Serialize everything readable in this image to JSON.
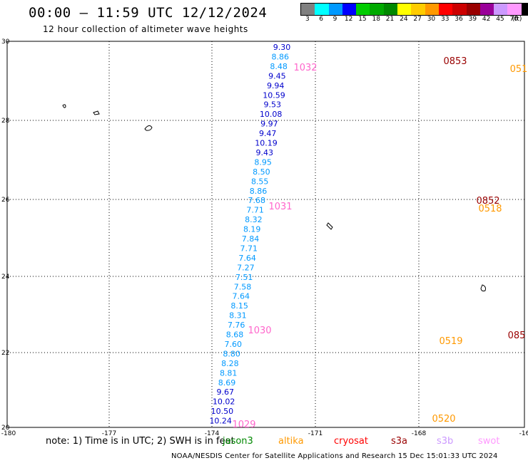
{
  "header": {
    "title": "00:00 – 11:59 UTC 12/12/2024",
    "subtitle": "12 hour collection of altimeter wave heights"
  },
  "colorbar": {
    "colors": [
      "#808080",
      "#00ffff",
      "#0099ff",
      "#0000ff",
      "#00cc00",
      "#00aa00",
      "#008800",
      "#ffff00",
      "#ffcc00",
      "#ff9900",
      "#ff0000",
      "#cc0000",
      "#990000",
      "#990099",
      "#cc99ff",
      "#ff99ff",
      "#000000"
    ],
    "labels": [
      "3",
      "6",
      "9",
      "12",
      "15",
      "18",
      "21",
      "24",
      "27",
      "30",
      "33",
      "36",
      "39",
      "42",
      "45",
      "70",
      "(ft)"
    ]
  },
  "map": {
    "lon_labels": [
      "-180",
      "-177",
      "-174",
      "-171",
      "-168",
      "-16"
    ],
    "lat_labels": [
      "30",
      "28",
      "26",
      "24",
      "22",
      "20"
    ]
  },
  "tracks": [
    {
      "lon": -173.8,
      "values": [
        "9.30",
        "8.86",
        "8.48",
        "9.45",
        "9.94",
        "10.59",
        "9.53",
        "10.08",
        "9.97",
        "9.47",
        "10.19",
        "9.43",
        "8.95",
        "8.50",
        "8.55",
        "8.86",
        "7.68",
        "7.71",
        "8.32",
        "8.19",
        "7.84",
        "7.71",
        "7.64",
        "7.27",
        "7.51",
        "7.58",
        "7.64",
        "8.15",
        "8.31",
        "7.76",
        "8.68",
        "7.60",
        "8.80",
        "8.28",
        "8.81",
        "8.69",
        "9.67",
        "10.02",
        "10.50",
        "10.24"
      ]
    }
  ],
  "pass_labels": [
    {
      "text": "1032",
      "color": "#ff66cc"
    },
    {
      "text": "1031",
      "color": "#ff66cc"
    },
    {
      "text": "1030",
      "color": "#ff66cc"
    },
    {
      "text": "1029",
      "color": "#ff66cc"
    },
    {
      "text": "0853",
      "color": "#990000"
    },
    {
      "text": "0852",
      "color": "#990000"
    },
    {
      "text": "0518",
      "color": "#ff9900"
    },
    {
      "text": "0519",
      "color": "#ff9900"
    },
    {
      "text": "0520",
      "color": "#ff9900"
    },
    {
      "text": "051",
      "color": "#ff9900"
    },
    {
      "text": "085",
      "color": "#990000"
    }
  ],
  "note": {
    "prefix": "note: 1) Time is in UTC; 2) SWH is in feet",
    "sats": [
      {
        "name": "jason3",
        "color": "#008800"
      },
      {
        "name": "altika",
        "color": "#ff9900"
      },
      {
        "name": "cryosat",
        "color": "#ff0000"
      },
      {
        "name": "s3a",
        "color": "#990000"
      },
      {
        "name": "s3b",
        "color": "#cc99ff"
      },
      {
        "name": "swot",
        "color": "#ff99ff"
      }
    ]
  },
  "footer": "NOAA/NESDIS Center for Satellite Applications and Research    15 Dec 15:01:33 UTC 2024"
}
